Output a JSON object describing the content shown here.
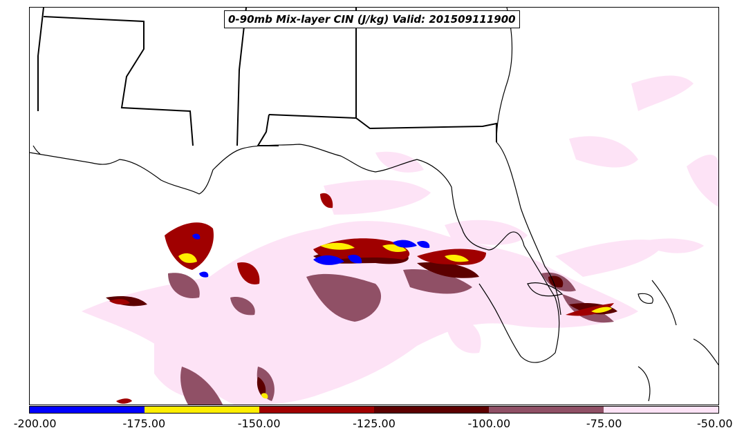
{
  "map": {
    "title": "0-90mb Mix-layer CIN (J/kg) Valid: 201509111900"
  },
  "colorbar": {
    "segments": [
      {
        "from": -200,
        "to": -175,
        "color": "#0000ff"
      },
      {
        "from": -175,
        "to": -150,
        "color": "#ffee00"
      },
      {
        "from": -150,
        "to": -125,
        "color": "#a00000"
      },
      {
        "from": -125,
        "to": -100,
        "color": "#5c0000"
      },
      {
        "from": -100,
        "to": -75,
        "color": "#905066"
      },
      {
        "from": -75,
        "to": -50,
        "color": "#fde3f6"
      }
    ],
    "tick_labels": [
      "-200.00",
      "-175.00",
      "-150.00",
      "-125.00",
      "-100.00",
      "-75.00",
      "-50.00"
    ]
  }
}
